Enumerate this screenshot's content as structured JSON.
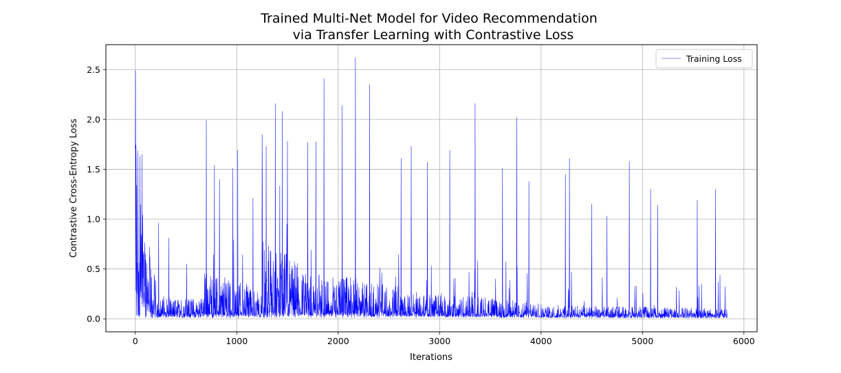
{
  "chart_data": {
    "type": "line",
    "title_line1": "Trained Multi-Net Model for Video Recommendation",
    "title_line2": "via Transfer Learning with Contrastive Loss",
    "xlabel": "Iterations",
    "ylabel": "Contrastive Cross-Entropy Loss",
    "xlim": [
      -290,
      6130
    ],
    "ylim": [
      -0.13,
      2.75
    ],
    "x_ticks": [
      0,
      1000,
      2000,
      3000,
      4000,
      5000,
      6000
    ],
    "x_tick_labels": [
      "0",
      "1000",
      "2000",
      "3000",
      "4000",
      "5000",
      "6000"
    ],
    "y_ticks": [
      0.0,
      0.5,
      1.0,
      1.5,
      2.0,
      2.5
    ],
    "y_tick_labels": [
      "0.0",
      "0.5",
      "1.0",
      "1.5",
      "2.0",
      "2.5"
    ],
    "grid": true,
    "legend_position": "top-right",
    "series": [
      {
        "name": "Training Loss",
        "color": "#0000ff",
        "x_range": [
          0,
          5840
        ],
        "segments": [
          {
            "x": [
              0,
              100
            ],
            "base": [
              1.45,
              0.6
            ],
            "noise": 0.28
          },
          {
            "x": [
              100,
              200
            ],
            "base": [
              0.6,
              0.22
            ],
            "noise": 0.2
          },
          {
            "x": [
              200,
              680
            ],
            "base": [
              0.12,
              0.12
            ],
            "noise": 0.12
          },
          {
            "x": [
              680,
              1250
            ],
            "base": [
              0.28,
              0.18
            ],
            "noise": 0.3
          },
          {
            "x": [
              1250,
              1600
            ],
            "base": [
              0.45,
              0.35
            ],
            "noise": 0.4
          },
          {
            "x": [
              1600,
              2600
            ],
            "base": [
              0.28,
              0.2
            ],
            "noise": 0.3
          },
          {
            "x": [
              2600,
              4000
            ],
            "base": [
              0.16,
              0.1
            ],
            "noise": 0.22
          },
          {
            "x": [
              4000,
              5840
            ],
            "base": [
              0.08,
              0.06
            ],
            "noise": 0.16
          }
        ],
        "peaks": [
          {
            "x": 0,
            "y": 1.71
          },
          {
            "x": 45,
            "y": 1.63
          },
          {
            "x": 65,
            "y": 1.65
          },
          {
            "x": 230,
            "y": 0.96
          },
          {
            "x": 330,
            "y": 0.81
          },
          {
            "x": 505,
            "y": 0.55
          },
          {
            "x": 700,
            "y": 1.99
          },
          {
            "x": 780,
            "y": 1.54
          },
          {
            "x": 830,
            "y": 1.4
          },
          {
            "x": 960,
            "y": 1.51
          },
          {
            "x": 1010,
            "y": 1.69
          },
          {
            "x": 1160,
            "y": 1.21
          },
          {
            "x": 1250,
            "y": 1.85
          },
          {
            "x": 1290,
            "y": 1.73
          },
          {
            "x": 1380,
            "y": 2.16
          },
          {
            "x": 1450,
            "y": 2.08
          },
          {
            "x": 1500,
            "y": 1.78
          },
          {
            "x": 1700,
            "y": 1.77
          },
          {
            "x": 1780,
            "y": 1.78
          },
          {
            "x": 1860,
            "y": 2.41
          },
          {
            "x": 2040,
            "y": 2.14
          },
          {
            "x": 2170,
            "y": 2.62
          },
          {
            "x": 2310,
            "y": 2.35
          },
          {
            "x": 2620,
            "y": 1.61
          },
          {
            "x": 2720,
            "y": 1.73
          },
          {
            "x": 2880,
            "y": 1.57
          },
          {
            "x": 3100,
            "y": 1.69
          },
          {
            "x": 3350,
            "y": 2.16
          },
          {
            "x": 3620,
            "y": 1.51
          },
          {
            "x": 3760,
            "y": 2.02
          },
          {
            "x": 3880,
            "y": 1.38
          },
          {
            "x": 4240,
            "y": 1.45
          },
          {
            "x": 4280,
            "y": 1.61
          },
          {
            "x": 4500,
            "y": 1.15
          },
          {
            "x": 4650,
            "y": 1.03
          },
          {
            "x": 4870,
            "y": 1.58
          },
          {
            "x": 5080,
            "y": 1.3
          },
          {
            "x": 5150,
            "y": 1.14
          },
          {
            "x": 5540,
            "y": 1.19
          },
          {
            "x": 5720,
            "y": 1.3
          }
        ]
      }
    ]
  }
}
